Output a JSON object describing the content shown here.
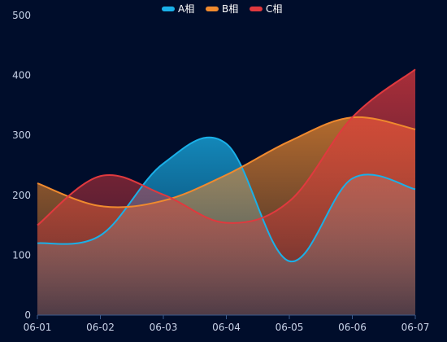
{
  "chart_data": {
    "type": "area",
    "title": "",
    "xlabel": "",
    "ylabel": "",
    "categories": [
      "06-01",
      "06-02",
      "06-03",
      "06-04",
      "06-05",
      "06-06",
      "06-07"
    ],
    "ylim": [
      0,
      500
    ],
    "yticks": [
      0,
      100,
      200,
      300,
      400,
      500
    ],
    "grid": false,
    "legend_position": "top-center",
    "smooth": true,
    "series": [
      {
        "name": "A相",
        "color": "#1ab0e8",
        "values": [
          120,
          133,
          253,
          286,
          90,
          228,
          210
        ]
      },
      {
        "name": "B相",
        "color": "#f08a2e",
        "values": [
          220,
          182,
          191,
          234,
          290,
          330,
          310
        ]
      },
      {
        "name": "C相",
        "color": "#e0393e",
        "values": [
          150,
          232,
          201,
          154,
          190,
          330,
          410
        ]
      }
    ]
  }
}
